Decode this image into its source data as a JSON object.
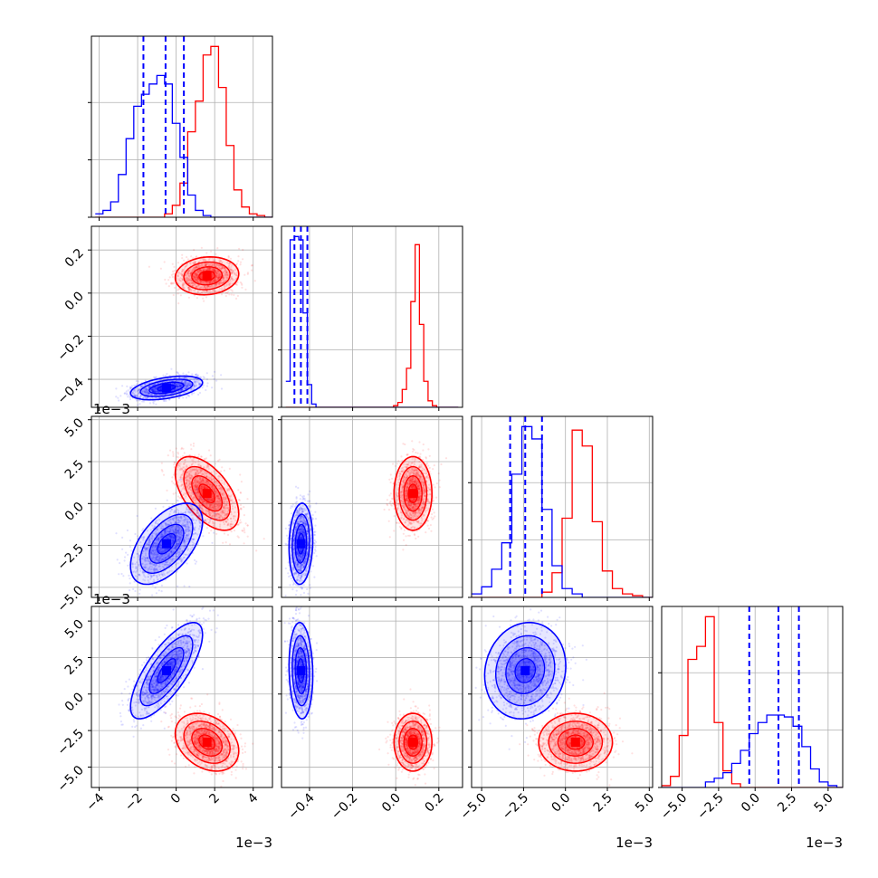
{
  "chart_data": {
    "type": "corner",
    "grid": true,
    "colors": {
      "series_a": "#ff0000",
      "series_b": "#0000ff",
      "quantile_lines": "#0000ff",
      "grid": "#b0b0b0"
    },
    "params": [
      {
        "id": "p0",
        "range": [
          -4.4,
          5.0
        ],
        "ticks": [
          -4,
          -2,
          0,
          2,
          4
        ],
        "tick_labels": [
          "−4",
          "−2",
          "0",
          "2",
          "4"
        ],
        "offset_label": "1e−3"
      },
      {
        "id": "p1",
        "range": [
          -0.53,
          0.31
        ],
        "ticks": [
          -0.4,
          -0.2,
          0.0,
          0.2
        ],
        "tick_labels": [
          "−0.4",
          "−0.2",
          "0.0",
          "0.2"
        ],
        "offset_label": ""
      },
      {
        "id": "p2",
        "range": [
          -5.6,
          5.2
        ],
        "ticks": [
          -5.0,
          -2.5,
          0.0,
          2.5,
          5.0
        ],
        "tick_labels": [
          "−5.0",
          "−2.5",
          "0.0",
          "2.5",
          "5.0"
        ],
        "offset_label": "1e−3"
      },
      {
        "id": "p3",
        "range": [
          -6.4,
          6.0
        ],
        "ticks": [
          -5.0,
          -2.5,
          0.0,
          2.5,
          5.0
        ],
        "tick_labels": [
          "−5.0",
          "−2.5",
          "0.0",
          "2.5",
          "5.0"
        ],
        "offset_label": "1e−3"
      }
    ],
    "series": [
      {
        "color": "red",
        "mean": [
          1.6,
          0.08,
          0.6,
          -3.3
        ],
        "std": [
          0.75,
          0.04,
          1.0,
          0.9
        ],
        "corr": [
          [
            1,
            0.1,
            -0.55,
            -0.3
          ],
          [
            0.1,
            1,
            0.0,
            0.0
          ],
          [
            -0.55,
            0.0,
            1,
            0.0
          ],
          [
            -0.3,
            0.0,
            0.0,
            1
          ]
        ]
      },
      {
        "color": "blue",
        "mean": [
          -0.5,
          -0.44,
          -2.4,
          1.6
        ],
        "std": [
          0.85,
          0.025,
          1.1,
          1.5
        ],
        "corr": [
          [
            1,
            0.45,
            0.55,
            0.75
          ],
          [
            0.45,
            1,
            0.1,
            -0.1
          ],
          [
            0.55,
            0.1,
            1,
            0.1
          ],
          [
            0.75,
            -0.1,
            0.1,
            1
          ]
        ]
      }
    ],
    "quantiles": [
      [
        -1.7,
        -0.55,
        0.4
      ],
      [
        -0.47,
        -0.44,
        -0.41
      ],
      [
        -3.3,
        -2.4,
        -1.4
      ],
      [
        -0.4,
        1.6,
        3.0
      ]
    ],
    "hist1d": [
      {
        "bins": [
          -4.2,
          -3.8,
          -3.4,
          -3.0,
          -2.6,
          -2.2,
          -1.8,
          -1.4,
          -1.0,
          -0.6,
          -0.2,
          0.2,
          0.6,
          1.0,
          1.4,
          1.8,
          2.2,
          2.6,
          3.0,
          3.4,
          3.8,
          4.2,
          4.6,
          5.0
        ],
        "red": [
          0,
          0,
          0,
          0,
          0,
          0,
          0,
          0,
          0,
          0.02,
          0.07,
          0.2,
          0.5,
          0.68,
          0.95,
          1.0,
          0.76,
          0.42,
          0.16,
          0.06,
          0.02,
          0.01,
          0
        ],
        "blue": [
          0.02,
          0.04,
          0.09,
          0.25,
          0.46,
          0.65,
          0.72,
          0.78,
          0.83,
          0.78,
          0.55,
          0.35,
          0.13,
          0.04,
          0.01,
          0,
          0,
          0,
          0,
          0,
          0,
          0,
          0
        ]
      },
      {
        "bins": [
          -0.51,
          -0.49,
          -0.47,
          -0.45,
          -0.43,
          -0.41,
          -0.39,
          -0.37,
          -0.35,
          -0.33,
          -0.31,
          -0.29,
          -0.27,
          -0.25,
          -0.23,
          -0.21,
          -0.19,
          -0.17,
          -0.15,
          -0.13,
          -0.11,
          -0.09,
          -0.07,
          -0.05,
          -0.03,
          -0.01,
          0.01,
          0.03,
          0.05,
          0.07,
          0.09,
          0.11,
          0.13,
          0.15,
          0.17,
          0.19,
          0.21,
          0.23,
          0.25,
          0.27,
          0.29
        ],
        "red": [
          0,
          0,
          0,
          0,
          0,
          0,
          0,
          0,
          0,
          0,
          0,
          0,
          0,
          0,
          0,
          0,
          0,
          0,
          0,
          0,
          0,
          0,
          0,
          0,
          0,
          0.01,
          0.03,
          0.11,
          0.24,
          0.65,
          1.0,
          0.51,
          0.16,
          0.04,
          0.01,
          0,
          0,
          0,
          0,
          0
        ],
        "blue": [
          0.16,
          1.03,
          1.05,
          1.03,
          0.58,
          0.14,
          0.02,
          0,
          0,
          0,
          0,
          0,
          0,
          0,
          0,
          0,
          0,
          0,
          0,
          0,
          0,
          0,
          0,
          0,
          0,
          0,
          0,
          0,
          0,
          0,
          0,
          0,
          0,
          0,
          0,
          0,
          0,
          0,
          0,
          0
        ]
      },
      {
        "bins": [
          -5.6,
          -5.0,
          -4.4,
          -3.8,
          -3.2,
          -2.6,
          -2.0,
          -1.4,
          -0.8,
          -0.2,
          0.4,
          1.0,
          1.6,
          2.2,
          2.8,
          3.4,
          4.0,
          4.6,
          5.2
        ],
        "red": [
          0,
          0,
          0,
          0,
          0,
          0,
          0,
          0.03,
          0.14,
          0.45,
          0.95,
          0.86,
          0.43,
          0.15,
          0.05,
          0.02,
          0.01,
          0
        ],
        "blue": [
          0.02,
          0.06,
          0.16,
          0.31,
          0.7,
          0.97,
          0.9,
          0.5,
          0.18,
          0.05,
          0.02,
          0,
          0,
          0,
          0,
          0,
          0,
          0
        ]
      },
      {
        "bins": [
          -6.4,
          -5.8,
          -5.2,
          -4.6,
          -4.0,
          -3.4,
          -2.8,
          -2.2,
          -1.6,
          -1.0,
          -0.4,
          0.2,
          0.8,
          1.4,
          2.0,
          2.6,
          3.2,
          3.8,
          4.4,
          5.0,
          5.6,
          6.0
        ],
        "red": [
          0.01,
          0.06,
          0.28,
          0.69,
          0.76,
          0.92,
          0.35,
          0.09,
          0.02,
          0,
          0,
          0,
          0,
          0,
          0,
          0,
          0,
          0,
          0,
          0,
          0
        ],
        "blue": [
          0,
          0,
          0,
          0,
          0,
          0.03,
          0.05,
          0.08,
          0.13,
          0.2,
          0.29,
          0.35,
          0.39,
          0.39,
          0.38,
          0.33,
          0.22,
          0.1,
          0.03,
          0.01,
          0
        ]
      }
    ]
  }
}
